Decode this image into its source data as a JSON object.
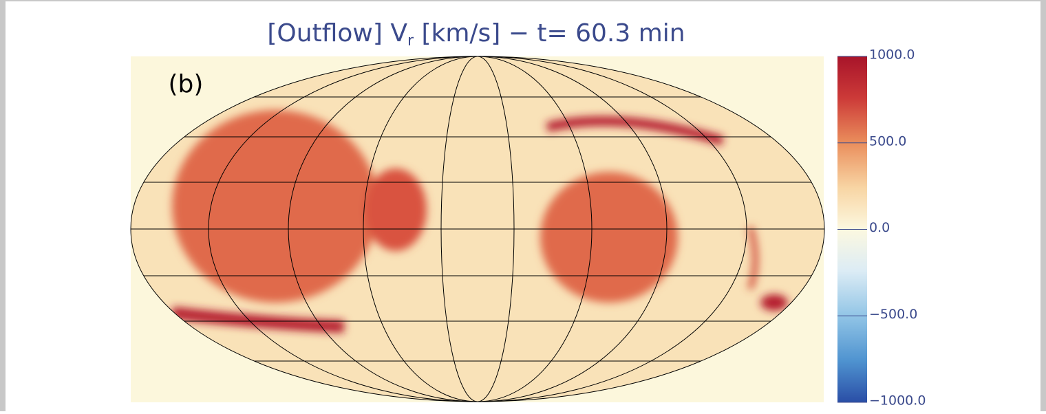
{
  "chart_data": {
    "type": "map",
    "title_parts": [
      "[Outflow] V",
      "r",
      " [km/s] − t= 60.3 min"
    ],
    "annotation": "(b)",
    "colorbar": {
      "clim": [
        -1000,
        1000
      ],
      "ticks": [
        {
          "value": 1000,
          "label": "1000.0"
        },
        {
          "value": 500,
          "label": "500.0"
        },
        {
          "value": 0,
          "label": "0.0"
        },
        {
          "value": -500,
          "label": "−500.0"
        },
        {
          "value": -1000,
          "label": "−1000.0"
        }
      ]
    }
  }
}
